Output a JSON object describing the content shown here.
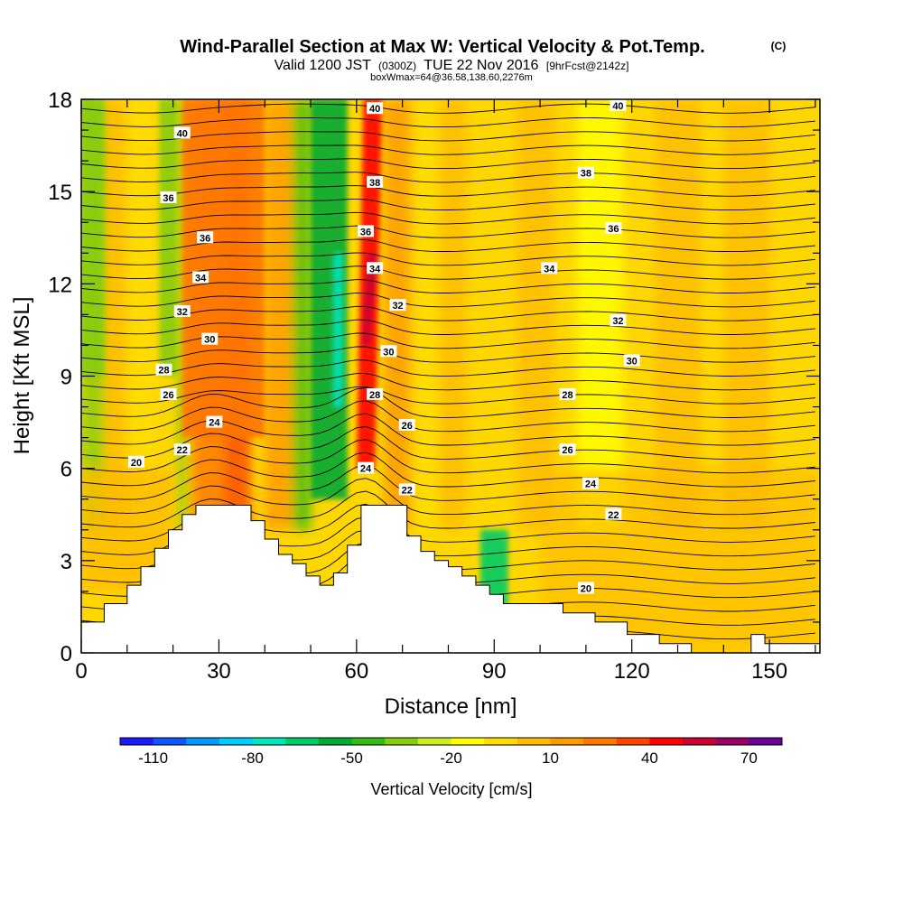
{
  "chart_data": {
    "type": "heatmap",
    "title": "Wind-Parallel Section at Max W: Vertical Velocity & Pot.Temp.",
    "title_unit": "(C)",
    "subtitle_parts": [
      "Valid 1200 JST",
      "(0300Z)",
      "TUE 22 Nov 2016",
      "[9hrFcst@2142z]"
    ],
    "subtitle2": "boxWmax=64@36.58,138.60,2276m",
    "xlabel": "Distance [nm]",
    "ylabel": "Height [Kft MSL]",
    "xlim": [
      0,
      161
    ],
    "ylim": [
      0,
      18
    ],
    "xticks": [
      0,
      30,
      60,
      90,
      120,
      150
    ],
    "yticks": [
      0,
      3,
      6,
      9,
      12,
      15,
      18
    ],
    "colorbar": {
      "label": "Vertical Velocity [cm/s]",
      "tick_labels": [
        "-110",
        "-80",
        "-50",
        "-20",
        "10",
        "40",
        "70"
      ],
      "tick_values": [
        -110,
        -80,
        -50,
        -20,
        10,
        40,
        70
      ],
      "range": [
        -120,
        80
      ],
      "colors": [
        "#1a1aff",
        "#0d55ff",
        "#0099ff",
        "#00ccff",
        "#00e6b8",
        "#00cc66",
        "#00aa33",
        "#33bb11",
        "#88cc11",
        "#ccee22",
        "#ffff00",
        "#ffdd00",
        "#ffbb00",
        "#ff9900",
        "#ff7700",
        "#ff4400",
        "#ff0000",
        "#cc0033",
        "#990066",
        "#660099"
      ]
    },
    "terrain_kft": [
      [
        0,
        1.0
      ],
      [
        5,
        1.0
      ],
      [
        5,
        1.6
      ],
      [
        10,
        1.6
      ],
      [
        10,
        2.2
      ],
      [
        13,
        2.2
      ],
      [
        13,
        2.8
      ],
      [
        16,
        2.8
      ],
      [
        16,
        3.4
      ],
      [
        19,
        3.4
      ],
      [
        19,
        4.0
      ],
      [
        22,
        4.0
      ],
      [
        22,
        4.5
      ],
      [
        25,
        4.5
      ],
      [
        25,
        4.8
      ],
      [
        37,
        4.8
      ],
      [
        37,
        4.3
      ],
      [
        40,
        4.3
      ],
      [
        40,
        3.7
      ],
      [
        43,
        3.7
      ],
      [
        43,
        3.2
      ],
      [
        46,
        3.2
      ],
      [
        46,
        2.9
      ],
      [
        49,
        2.9
      ],
      [
        49,
        2.5
      ],
      [
        52,
        2.5
      ],
      [
        52,
        2.2
      ],
      [
        55,
        2.2
      ],
      [
        55,
        2.6
      ],
      [
        58,
        2.6
      ],
      [
        58,
        3.5
      ],
      [
        61,
        3.5
      ],
      [
        61,
        4.8
      ],
      [
        71,
        4.8
      ],
      [
        71,
        3.8
      ],
      [
        74,
        3.8
      ],
      [
        74,
        3.3
      ],
      [
        77,
        3.3
      ],
      [
        77,
        3.0
      ],
      [
        80,
        3.0
      ],
      [
        80,
        2.8
      ],
      [
        83,
        2.8
      ],
      [
        83,
        2.5
      ],
      [
        86,
        2.5
      ],
      [
        86,
        2.2
      ],
      [
        89,
        2.2
      ],
      [
        89,
        1.9
      ],
      [
        92,
        1.9
      ],
      [
        92,
        1.6
      ],
      [
        105,
        1.6
      ],
      [
        105,
        1.3
      ],
      [
        112,
        1.3
      ],
      [
        112,
        1.0
      ],
      [
        119,
        1.0
      ],
      [
        119,
        0.6
      ],
      [
        126,
        0.6
      ],
      [
        126,
        0.3
      ],
      [
        133,
        0.3
      ],
      [
        133,
        0.0
      ],
      [
        146,
        0.0
      ],
      [
        146,
        0.6
      ],
      [
        149,
        0.6
      ],
      [
        149,
        0.3
      ],
      [
        161,
        0.3
      ],
      [
        161,
        0.0
      ]
    ],
    "theta_labels": [
      {
        "text": "40",
        "x": 22,
        "y": 16.9
      },
      {
        "text": "40",
        "x": 64,
        "y": 17.7
      },
      {
        "text": "40",
        "x": 117,
        "y": 17.8
      },
      {
        "text": "38",
        "x": 64,
        "y": 15.3
      },
      {
        "text": "38",
        "x": 110,
        "y": 15.6
      },
      {
        "text": "36",
        "x": 19,
        "y": 14.8
      },
      {
        "text": "36",
        "x": 27,
        "y": 13.5
      },
      {
        "text": "36",
        "x": 62,
        "y": 13.7
      },
      {
        "text": "36",
        "x": 116,
        "y": 13.8
      },
      {
        "text": "34",
        "x": 26,
        "y": 12.2
      },
      {
        "text": "34",
        "x": 64,
        "y": 12.5
      },
      {
        "text": "34",
        "x": 102,
        "y": 12.5
      },
      {
        "text": "32",
        "x": 22,
        "y": 11.1
      },
      {
        "text": "32",
        "x": 69,
        "y": 11.3
      },
      {
        "text": "32",
        "x": 117,
        "y": 10.8
      },
      {
        "text": "30",
        "x": 28,
        "y": 10.2
      },
      {
        "text": "30",
        "x": 67,
        "y": 9.8
      },
      {
        "text": "30",
        "x": 120,
        "y": 9.5
      },
      {
        "text": "28",
        "x": 18,
        "y": 9.2
      },
      {
        "text": "28",
        "x": 64,
        "y": 8.4
      },
      {
        "text": "28",
        "x": 106,
        "y": 8.4
      },
      {
        "text": "26",
        "x": 19,
        "y": 8.4
      },
      {
        "text": "26",
        "x": 71,
        "y": 7.4
      },
      {
        "text": "26",
        "x": 106,
        "y": 6.6
      },
      {
        "text": "24",
        "x": 29,
        "y": 7.5
      },
      {
        "text": "24",
        "x": 62,
        "y": 6.0
      },
      {
        "text": "24",
        "x": 111,
        "y": 5.5
      },
      {
        "text": "22",
        "x": 22,
        "y": 6.6
      },
      {
        "text": "22",
        "x": 71,
        "y": 5.3
      },
      {
        "text": "22",
        "x": 116,
        "y": 4.5
      },
      {
        "text": "20",
        "x": 12,
        "y": 6.2
      },
      {
        "text": "20",
        "x": 110,
        "y": 2.1
      }
    ],
    "features": [
      {
        "kind": "updraft",
        "color": "#ff0000",
        "x": [
          60,
          64
        ],
        "top": 18,
        "bottom": 6
      },
      {
        "kind": "updraft",
        "color": "#cc0033",
        "x": [
          61,
          63
        ],
        "top": 13,
        "bottom": 10
      },
      {
        "kind": "updraft",
        "color": "#ff7700",
        "x": [
          22,
          40
        ],
        "top": 18,
        "bottom": 7
      },
      {
        "kind": "downdraft",
        "color": "#00aa33",
        "x": [
          50,
          58
        ],
        "top": 18,
        "bottom": 5
      },
      {
        "kind": "downdraft",
        "color": "#00e6b8",
        "x": [
          55,
          57
        ],
        "top": 13,
        "bottom": 8
      },
      {
        "kind": "downdraft",
        "color": "#00cc66",
        "x": [
          87,
          93
        ],
        "top": 4,
        "bottom": 1.5
      },
      {
        "kind": "downdraft",
        "color": "#88cc11",
        "x": [
          0,
          5
        ],
        "top": 18,
        "bottom": 9
      },
      {
        "kind": "downdraft",
        "color": "#88cc11",
        "x": [
          17,
          21
        ],
        "top": 18,
        "bottom": 9
      }
    ]
  }
}
